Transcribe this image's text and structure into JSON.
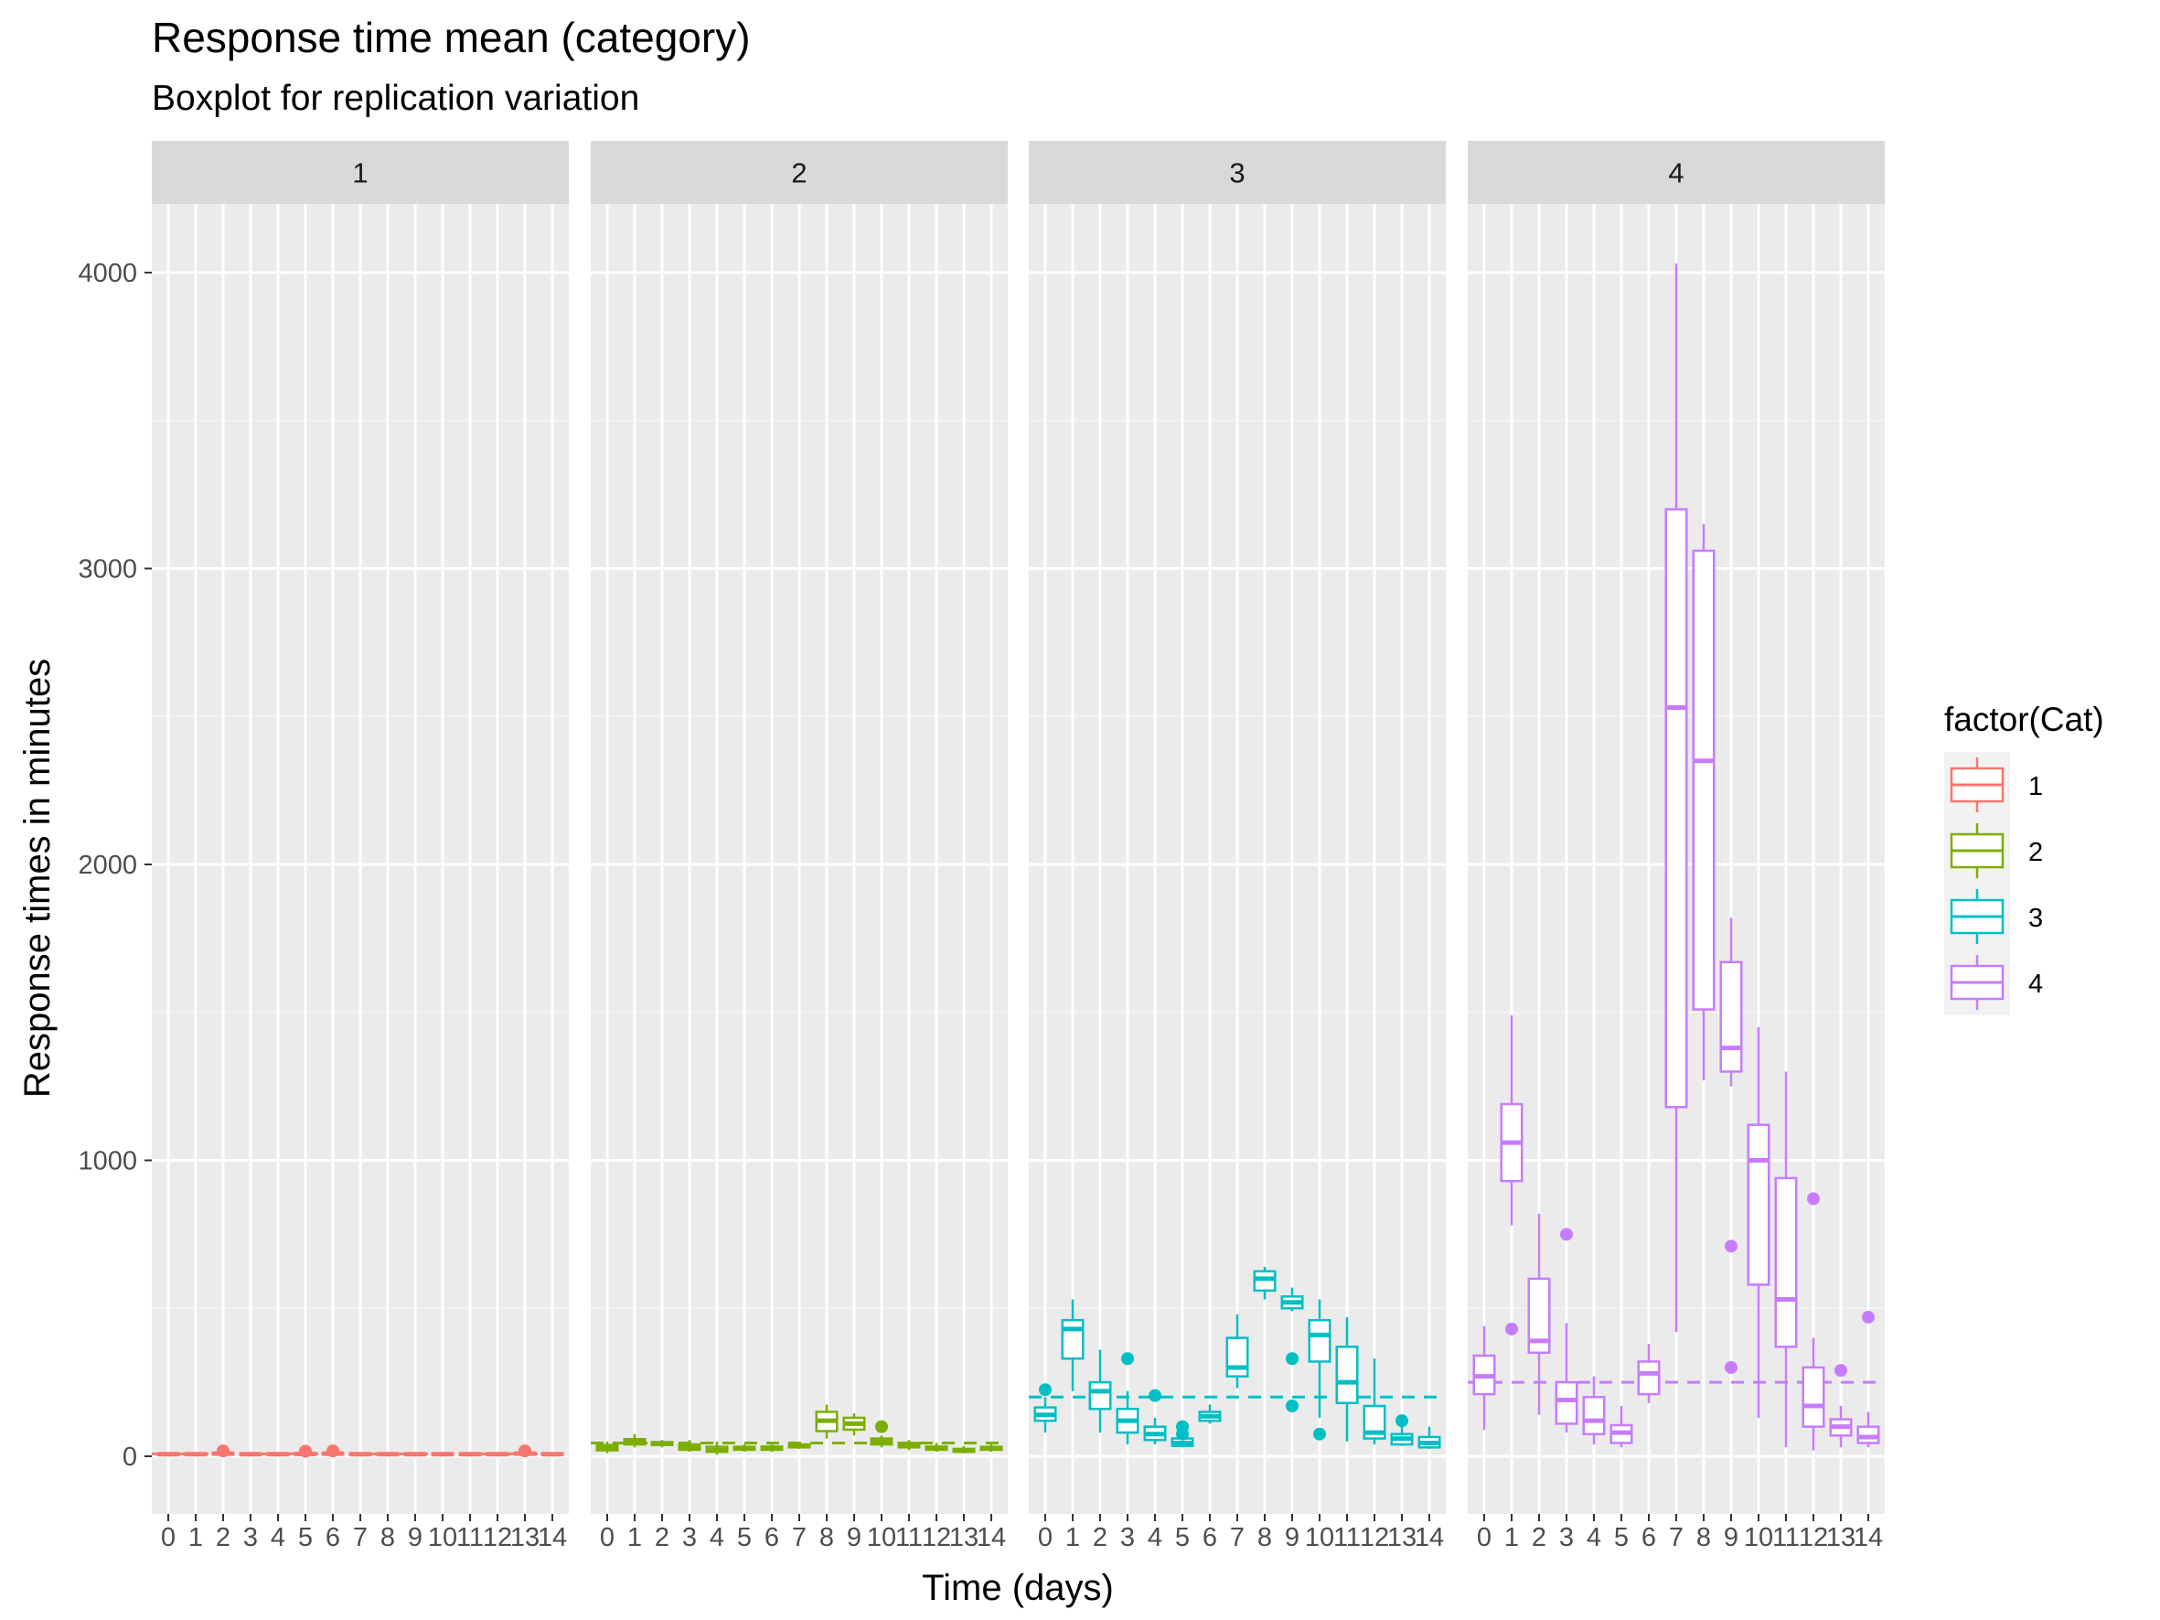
{
  "title": "Response time mean (category)",
  "subtitle": "Boxplot for replication variation",
  "colors": {
    "1": "#F8766D",
    "2": "#7CAE00",
    "3": "#00BFC4",
    "4": "#C77CFF"
  },
  "chart_data": {
    "type": "boxplot",
    "xlabel": "Time (days)",
    "ylabel": "Response times in minutes",
    "ylim": [
      -200,
      4250
    ],
    "y_ticks": [
      0,
      1000,
      2000,
      3000,
      4000
    ],
    "x_categories": [
      "0",
      "1",
      "2",
      "3",
      "4",
      "5",
      "6",
      "7",
      "8",
      "9",
      "10",
      "11",
      "12",
      "13",
      "14"
    ],
    "legend": {
      "title": "factor(Cat)",
      "entries": [
        "1",
        "2",
        "3",
        "4"
      ],
      "position": "right"
    },
    "grid": true,
    "panels": [
      {
        "facet": "1",
        "reference_line": 8,
        "boxes": [
          {
            "x": "0",
            "low": 3,
            "q1": 5,
            "median": 7,
            "q3": 10,
            "high": 14,
            "outliers": []
          },
          {
            "x": "1",
            "low": 3,
            "q1": 5,
            "median": 7,
            "q3": 10,
            "high": 13,
            "outliers": []
          },
          {
            "x": "2",
            "low": 3,
            "q1": 6,
            "median": 9,
            "q3": 12,
            "high": 16,
            "outliers": [
              18
            ]
          },
          {
            "x": "3",
            "low": 3,
            "q1": 5,
            "median": 7,
            "q3": 10,
            "high": 13,
            "outliers": []
          },
          {
            "x": "4",
            "low": 3,
            "q1": 5,
            "median": 7,
            "q3": 10,
            "high": 13,
            "outliers": []
          },
          {
            "x": "5",
            "low": 3,
            "q1": 5,
            "median": 8,
            "q3": 11,
            "high": 15,
            "outliers": [
              17
            ]
          },
          {
            "x": "6",
            "low": 3,
            "q1": 6,
            "median": 9,
            "q3": 12,
            "high": 16,
            "outliers": [
              18
            ]
          },
          {
            "x": "7",
            "low": 3,
            "q1": 5,
            "median": 7,
            "q3": 10,
            "high": 13,
            "outliers": []
          },
          {
            "x": "8",
            "low": 3,
            "q1": 5,
            "median": 7,
            "q3": 10,
            "high": 13,
            "outliers": []
          },
          {
            "x": "9",
            "low": 3,
            "q1": 5,
            "median": 7,
            "q3": 10,
            "high": 13,
            "outliers": []
          },
          {
            "x": "10",
            "low": 3,
            "q1": 5,
            "median": 7,
            "q3": 10,
            "high": 13,
            "outliers": []
          },
          {
            "x": "11",
            "low": 3,
            "q1": 5,
            "median": 7,
            "q3": 10,
            "high": 13,
            "outliers": []
          },
          {
            "x": "12",
            "low": 3,
            "q1": 5,
            "median": 7,
            "q3": 10,
            "high": 13,
            "outliers": []
          },
          {
            "x": "13",
            "low": 3,
            "q1": 6,
            "median": 9,
            "q3": 12,
            "high": 16,
            "outliers": [
              18
            ]
          },
          {
            "x": "14",
            "low": 3,
            "q1": 5,
            "median": 7,
            "q3": 10,
            "high": 13,
            "outliers": []
          }
        ]
      },
      {
        "facet": "2",
        "reference_line": 45,
        "boxes": [
          {
            "x": "0",
            "low": 10,
            "q1": 20,
            "median": 28,
            "q3": 38,
            "high": 50,
            "outliers": []
          },
          {
            "x": "1",
            "low": 30,
            "q1": 40,
            "median": 50,
            "q3": 58,
            "high": 75,
            "outliers": []
          },
          {
            "x": "2",
            "low": 30,
            "q1": 38,
            "median": 42,
            "q3": 48,
            "high": 55,
            "outliers": []
          },
          {
            "x": "3",
            "low": 15,
            "q1": 22,
            "median": 30,
            "q3": 40,
            "high": 55,
            "outliers": []
          },
          {
            "x": "4",
            "low": 5,
            "q1": 15,
            "median": 20,
            "q3": 32,
            "high": 50,
            "outliers": []
          },
          {
            "x": "5",
            "low": 15,
            "q1": 22,
            "median": 28,
            "q3": 32,
            "high": 40,
            "outliers": []
          },
          {
            "x": "6",
            "low": 15,
            "q1": 22,
            "median": 27,
            "q3": 33,
            "high": 40,
            "outliers": []
          },
          {
            "x": "7",
            "low": 25,
            "q1": 30,
            "median": 35,
            "q3": 40,
            "high": 48,
            "outliers": []
          },
          {
            "x": "8",
            "low": 60,
            "q1": 85,
            "median": 120,
            "q3": 150,
            "high": 175,
            "outliers": []
          },
          {
            "x": "9",
            "low": 70,
            "q1": 90,
            "median": 110,
            "q3": 130,
            "high": 145,
            "outliers": []
          },
          {
            "x": "10",
            "low": 30,
            "q1": 40,
            "median": 50,
            "q3": 60,
            "high": 70,
            "outliers": [
              100
            ]
          },
          {
            "x": "11",
            "low": 20,
            "q1": 30,
            "median": 38,
            "q3": 45,
            "high": 55,
            "outliers": []
          },
          {
            "x": "12",
            "low": 15,
            "q1": 22,
            "median": 28,
            "q3": 33,
            "high": 45,
            "outliers": []
          },
          {
            "x": "13",
            "low": 10,
            "q1": 15,
            "median": 20,
            "q3": 25,
            "high": 35,
            "outliers": []
          },
          {
            "x": "14",
            "low": 15,
            "q1": 22,
            "median": 27,
            "q3": 32,
            "high": 40,
            "outliers": []
          }
        ]
      },
      {
        "facet": "3",
        "reference_line": 200,
        "boxes": [
          {
            "x": "0",
            "low": 80,
            "q1": 120,
            "median": 140,
            "q3": 165,
            "high": 200,
            "outliers": [
              225
            ]
          },
          {
            "x": "1",
            "low": 220,
            "q1": 330,
            "median": 430,
            "q3": 460,
            "high": 530,
            "outliers": []
          },
          {
            "x": "2",
            "low": 80,
            "q1": 160,
            "median": 220,
            "q3": 250,
            "high": 360,
            "outliers": []
          },
          {
            "x": "3",
            "low": 40,
            "q1": 80,
            "median": 120,
            "q3": 160,
            "high": 220,
            "outliers": [
              330
            ]
          },
          {
            "x": "4",
            "low": 40,
            "q1": 55,
            "median": 75,
            "q3": 100,
            "high": 130,
            "outliers": [
              205
            ]
          },
          {
            "x": "5",
            "low": 30,
            "q1": 35,
            "median": 45,
            "q3": 60,
            "high": 80,
            "outliers": [
              75,
              100
            ]
          },
          {
            "x": "6",
            "low": 110,
            "q1": 120,
            "median": 135,
            "q3": 150,
            "high": 175,
            "outliers": []
          },
          {
            "x": "7",
            "low": 230,
            "q1": 270,
            "median": 300,
            "q3": 400,
            "high": 480,
            "outliers": []
          },
          {
            "x": "8",
            "low": 530,
            "q1": 560,
            "median": 600,
            "q3": 625,
            "high": 640,
            "outliers": []
          },
          {
            "x": "9",
            "low": 490,
            "q1": 500,
            "median": 520,
            "q3": 540,
            "high": 570,
            "outliers": [
              170,
              330
            ]
          },
          {
            "x": "10",
            "low": 130,
            "q1": 320,
            "median": 410,
            "q3": 460,
            "high": 530,
            "outliers": [
              75
            ]
          },
          {
            "x": "11",
            "low": 50,
            "q1": 180,
            "median": 250,
            "q3": 370,
            "high": 470,
            "outliers": []
          },
          {
            "x": "12",
            "low": 40,
            "q1": 60,
            "median": 80,
            "q3": 170,
            "high": 330,
            "outliers": []
          },
          {
            "x": "13",
            "low": 35,
            "q1": 40,
            "median": 60,
            "q3": 75,
            "high": 100,
            "outliers": [
              120
            ]
          },
          {
            "x": "14",
            "low": 25,
            "q1": 30,
            "median": 45,
            "q3": 65,
            "high": 100,
            "outliers": []
          }
        ]
      },
      {
        "facet": "4",
        "reference_line": 250,
        "boxes": [
          {
            "x": "0",
            "low": 90,
            "q1": 210,
            "median": 270,
            "q3": 340,
            "high": 440,
            "outliers": []
          },
          {
            "x": "1",
            "low": 780,
            "q1": 930,
            "median": 1060,
            "q3": 1190,
            "high": 1490,
            "outliers": [
              430
            ]
          },
          {
            "x": "2",
            "low": 140,
            "q1": 350,
            "median": 390,
            "q3": 600,
            "high": 820,
            "outliers": []
          },
          {
            "x": "3",
            "low": 80,
            "q1": 110,
            "median": 190,
            "q3": 250,
            "high": 450,
            "outliers": [
              750
            ]
          },
          {
            "x": "4",
            "low": 40,
            "q1": 75,
            "median": 120,
            "q3": 200,
            "high": 270,
            "outliers": []
          },
          {
            "x": "5",
            "low": 30,
            "q1": 45,
            "median": 80,
            "q3": 105,
            "high": 170,
            "outliers": []
          },
          {
            "x": "6",
            "low": 180,
            "q1": 210,
            "median": 280,
            "q3": 320,
            "high": 380,
            "outliers": []
          },
          {
            "x": "7",
            "low": 420,
            "q1": 1180,
            "median": 2530,
            "q3": 3200,
            "high": 4030,
            "outliers": []
          },
          {
            "x": "8",
            "low": 1270,
            "q1": 1510,
            "median": 2350,
            "q3": 3060,
            "high": 3150,
            "outliers": []
          },
          {
            "x": "9",
            "low": 1250,
            "q1": 1300,
            "median": 1380,
            "q3": 1670,
            "high": 1820,
            "outliers": [
              300,
              710
            ]
          },
          {
            "x": "10",
            "low": 130,
            "q1": 580,
            "median": 1000,
            "q3": 1120,
            "high": 1450,
            "outliers": []
          },
          {
            "x": "11",
            "low": 30,
            "q1": 370,
            "median": 530,
            "q3": 940,
            "high": 1300,
            "outliers": []
          },
          {
            "x": "12",
            "low": 20,
            "q1": 100,
            "median": 170,
            "q3": 300,
            "high": 400,
            "outliers": [
              870
            ]
          },
          {
            "x": "13",
            "low": 30,
            "q1": 70,
            "median": 100,
            "q3": 125,
            "high": 170,
            "outliers": [
              290
            ]
          },
          {
            "x": "14",
            "low": 30,
            "q1": 45,
            "median": 65,
            "q3": 100,
            "high": 150,
            "outliers": [
              470
            ]
          }
        ]
      }
    ]
  }
}
